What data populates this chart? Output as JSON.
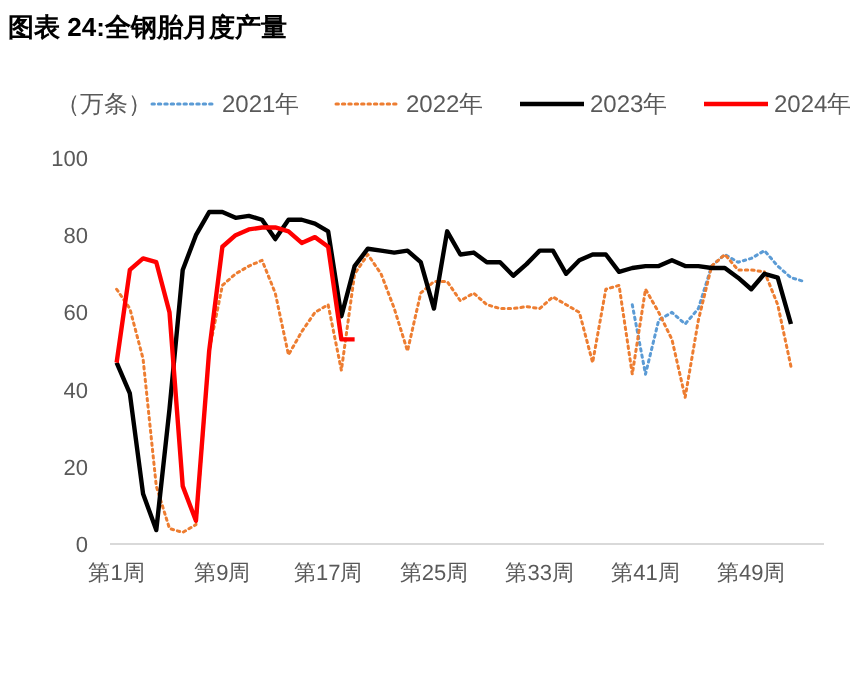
{
  "chart_data": {
    "type": "line",
    "title": "图表 24:全钢胎月度产量",
    "ylabel": "（万条）",
    "categories": [
      "第1周",
      null,
      null,
      null,
      null,
      null,
      null,
      null,
      "第9周",
      null,
      null,
      null,
      null,
      null,
      null,
      null,
      "第17周",
      null,
      null,
      null,
      null,
      null,
      null,
      null,
      "第25周",
      null,
      null,
      null,
      null,
      null,
      null,
      null,
      "第33周",
      null,
      null,
      null,
      null,
      null,
      null,
      null,
      "第41周",
      null,
      null,
      null,
      null,
      null,
      null,
      null,
      "第49周",
      null,
      null,
      null,
      null,
      null
    ],
    "ylim": [
      0,
      100
    ],
    "yticks": [
      0,
      20,
      40,
      60,
      80,
      100
    ],
    "grid": false,
    "legend": "top",
    "series": [
      {
        "name": "2021年",
        "color": "#5b9bd5",
        "line_style": "dotted",
        "values": [
          null,
          null,
          null,
          null,
          null,
          null,
          null,
          null,
          null,
          null,
          null,
          null,
          null,
          null,
          null,
          null,
          null,
          null,
          null,
          null,
          null,
          null,
          null,
          null,
          null,
          null,
          null,
          null,
          null,
          null,
          null,
          null,
          null,
          null,
          null,
          null,
          null,
          null,
          null,
          62,
          44,
          58,
          60,
          57,
          61,
          72,
          75,
          73,
          74,
          76,
          72,
          69,
          68,
          null
        ]
      },
      {
        "name": "2022年",
        "color": "#ed7d31",
        "line_style": "dotted",
        "values": [
          66,
          61,
          48,
          15,
          4,
          3,
          5,
          50,
          67,
          70,
          72,
          73.5,
          65,
          49,
          55,
          60,
          62,
          45,
          70,
          75,
          70,
          61,
          50,
          65,
          68,
          68,
          63,
          65,
          62,
          61,
          61,
          61.5,
          61,
          64,
          62,
          60,
          47,
          66,
          67,
          44,
          66,
          60,
          53,
          38,
          58,
          72,
          75,
          71,
          71,
          70.5,
          62,
          46,
          null,
          null
        ]
      },
      {
        "name": "2023年",
        "color": "#000000",
        "line_style": "solid",
        "values": [
          47,
          39,
          13,
          3.6,
          35,
          71,
          80,
          86,
          86,
          84.5,
          85,
          84,
          79,
          84,
          84,
          83,
          81,
          59,
          72,
          76.5,
          76,
          75.5,
          76,
          73,
          61,
          81,
          75,
          75.5,
          73,
          73,
          69.5,
          72.5,
          76,
          76,
          70,
          73.5,
          75,
          75,
          70.5,
          71.5,
          72,
          72,
          73.5,
          72,
          72,
          71.5,
          71.5,
          69,
          66,
          70,
          69,
          57,
          null,
          null
        ]
      },
      {
        "name": "2024年",
        "color": "#ff0000",
        "line_style": "solid",
        "values": [
          47,
          71,
          74,
          73,
          60,
          15,
          6,
          50,
          77,
          80,
          81.5,
          82,
          82,
          81,
          78,
          79.5,
          77,
          53,
          53,
          null,
          null,
          null,
          null,
          null,
          null,
          null,
          null,
          null,
          null,
          null,
          null,
          null,
          null,
          null,
          null,
          null,
          null,
          null,
          null,
          null,
          null,
          null,
          null,
          null,
          null,
          null,
          null,
          null,
          null,
          null,
          null,
          null,
          null,
          null
        ]
      }
    ]
  }
}
